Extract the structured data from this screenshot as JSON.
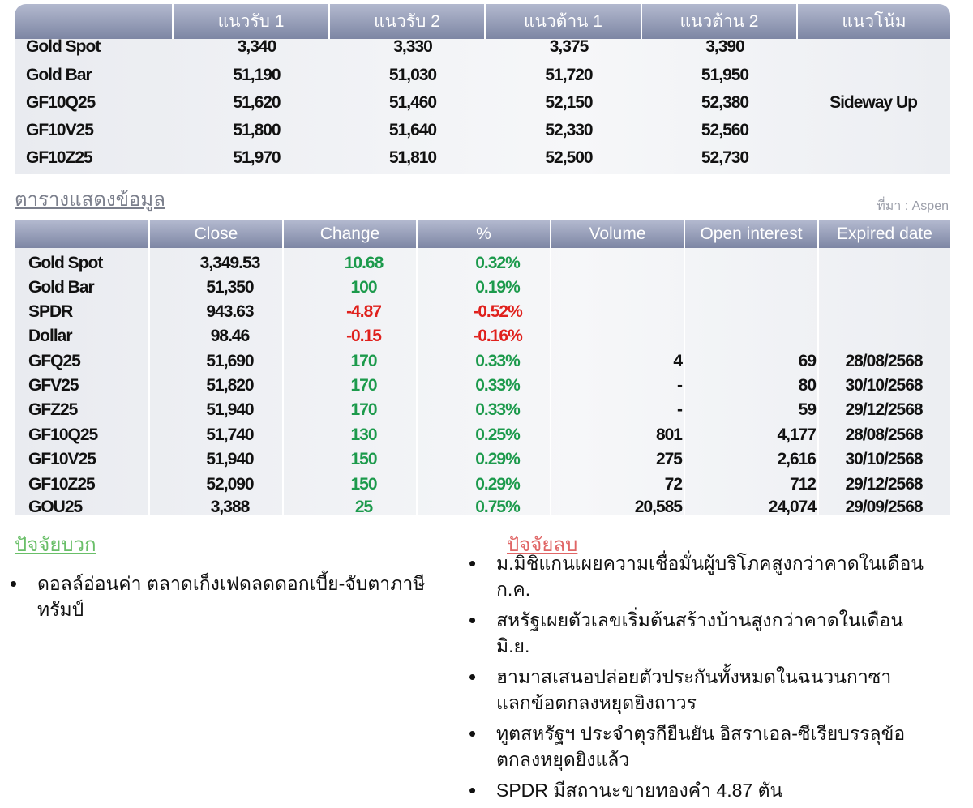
{
  "levels_table": {
    "headers": [
      "แนวรับ 1",
      "แนวรับ 2",
      "แนวต้าน 1",
      "แนวต้าน 2",
      "แนวโน้ม"
    ],
    "rows": [
      {
        "name": "Gold Spot",
        "values": [
          "3,340",
          "3,330",
          "3,375",
          "3,390"
        ]
      },
      {
        "name": "Gold Bar",
        "values": [
          "51,190",
          "51,030",
          "51,720",
          "51,950"
        ]
      },
      {
        "name": "GF10Q25",
        "values": [
          "51,620",
          "51,460",
          "52,150",
          "52,380"
        ]
      },
      {
        "name": "GF10V25",
        "values": [
          "51,800",
          "51,640",
          "52,330",
          "52,560"
        ]
      },
      {
        "name": "GF10Z25",
        "values": [
          "51,970",
          "51,810",
          "52,500",
          "52,730"
        ]
      }
    ],
    "trend": "Sideway Up"
  },
  "caption": "ตารางแสดงข้อมูล",
  "source": "ที่มา : Aspen",
  "data_table": {
    "headers": [
      "Close",
      "Change",
      "%",
      "Volume",
      "Open interest",
      "Expired date"
    ],
    "rows": [
      [
        "Gold Spot",
        "3,349.53",
        "10.68",
        "0.32%",
        null,
        null,
        null
      ],
      [
        "Gold Bar",
        "51,350",
        "100",
        "0.19%",
        null,
        null,
        null
      ],
      [
        "SPDR",
        "943.63",
        "-4.87",
        "-0.52%",
        null,
        null,
        null
      ],
      [
        "Dollar",
        "98.46",
        "-0.15",
        "-0.16%",
        null,
        null,
        null
      ],
      [
        "GFQ25",
        "51,690",
        "170",
        "0.33%",
        "4",
        "69",
        "28/08/2568"
      ],
      [
        "GFV25",
        "51,820",
        "170",
        "0.33%",
        "-",
        "80",
        "30/10/2568"
      ],
      [
        "GFZ25",
        "51,940",
        "170",
        "0.33%",
        "-",
        "59",
        "29/12/2568"
      ],
      [
        "GF10Q25",
        "51,740",
        "130",
        "0.25%",
        "801",
        "4,177",
        "28/08/2568"
      ],
      [
        "GF10V25",
        "51,940",
        "150",
        "0.29%",
        "275",
        "2,616",
        "30/10/2568"
      ],
      [
        "GF10Z25",
        "52,090",
        "150",
        "0.29%",
        "72",
        "712",
        "29/12/2568"
      ],
      [
        "GOU25",
        "3,388",
        "25",
        "0.75%",
        "20,585",
        "24,074",
        "29/09/2568"
      ]
    ]
  },
  "positive_factors": {
    "title": "ปัจจัยบวก",
    "items": [
      "ดอลล์อ่อนค่า ตลาดเก็งเฟดลดดอกเบี้ย-จับตาภาษีทรัมป์"
    ]
  },
  "negative_factors": {
    "title": "ปัจจัยลบ",
    "items": [
      "ม.มิชิแกนเผยความเชื่อมั่นผู้บริโภคสูงกว่าคาดในเดือนก.ค.",
      "สหรัฐเผยตัวเลขเริ่มต้นสร้างบ้านสูงกว่าคาดในเดือนมิ.ย.",
      "ฮามาสเสนอปล่อยตัวประกันทั้งหมดในฉนวนกาซา แลกข้อตกลงหยุดยิงถาวร",
      "ทูตสหรัฐฯ ประจำตุรกียืนยัน อิสราเอล-ซีเรียบรรลุข้อตกลงหยุดยิงแล้ว",
      "SPDR มีสถานะขายทองคำ 4.87 ตัน"
    ]
  }
}
